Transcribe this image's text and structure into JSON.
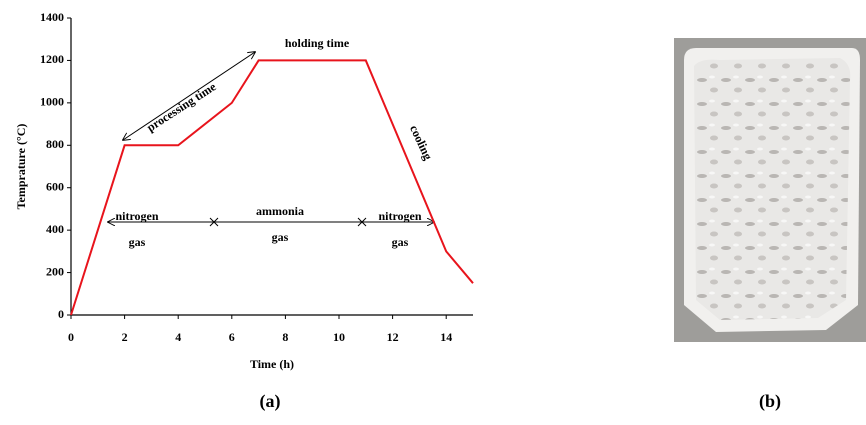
{
  "chart_data": {
    "type": "line",
    "x": [
      0,
      2,
      4,
      6,
      7,
      11,
      14,
      15
    ],
    "values": [
      0,
      800,
      800,
      1000,
      1200,
      1200,
      300,
      150
    ],
    "color": "#e8141c",
    "xlim": [
      0,
      15
    ],
    "xticks": [
      0,
      2,
      4,
      6,
      8,
      10,
      12,
      14
    ],
    "ylim": [
      0,
      1400
    ],
    "yticks": [
      0,
      200,
      400,
      600,
      800,
      1000,
      1200,
      1400
    ],
    "x_label": "Time (h)",
    "y_label": "Temprature (°C)",
    "annotations": [
      {
        "text": [
          "processing time"
        ]
      },
      {
        "text": [
          "holding time"
        ]
      },
      {
        "text": [
          "cooling"
        ]
      },
      {
        "text": [
          "nitrogen",
          "gas"
        ]
      },
      {
        "text": [
          "ammonia",
          "gas"
        ]
      },
      {
        "text": [
          "nitrogen",
          "gas"
        ]
      }
    ]
  },
  "panel_labels": [
    "(a)",
    "(b)"
  ]
}
